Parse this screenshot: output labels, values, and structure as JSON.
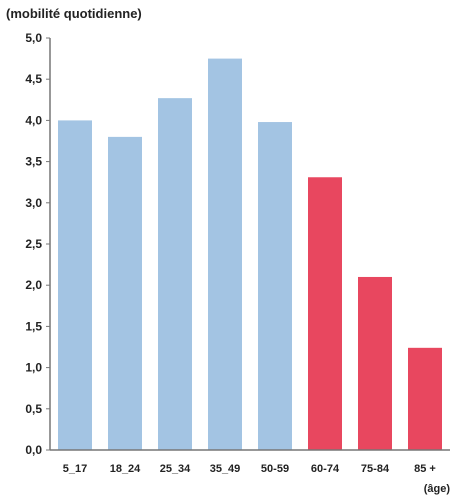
{
  "chart_data": {
    "type": "bar",
    "title": "",
    "ylabel": "(mobilité quotidienne)",
    "xlabel": "(âge)",
    "categories": [
      "5_17",
      "18_24",
      "25_34",
      "35_49",
      "50-59",
      "60-74",
      "75-84",
      "85 +"
    ],
    "values": [
      4.0,
      3.8,
      4.27,
      4.75,
      3.98,
      3.31,
      2.1,
      1.24
    ],
    "ylim": [
      0,
      5
    ],
    "yticks": [
      "0,0",
      "0,5",
      "1,0",
      "1,5",
      "2,0",
      "2,5",
      "3,0",
      "3,5",
      "4,0",
      "4,5",
      "5,0"
    ],
    "grid": false,
    "colors": {
      "blue": "#a3c4e3",
      "red": "#e8475f",
      "axis": "#777777"
    },
    "bar_colors": [
      "blue",
      "blue",
      "blue",
      "blue",
      "blue",
      "red",
      "red",
      "red"
    ]
  }
}
